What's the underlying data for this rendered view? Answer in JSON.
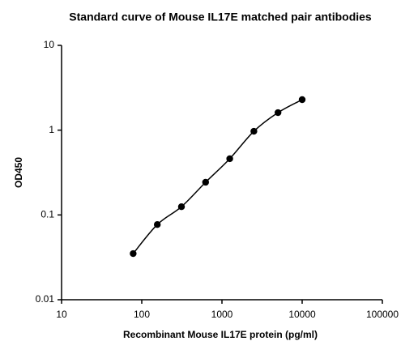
{
  "chart_data": {
    "type": "scatter",
    "title": "Standard curve of Mouse IL17E matched pair antibodies",
    "x_label": "Recombinant Mouse IL17E protein (pg/ml)",
    "y_label": "OD450",
    "x": [
      78.125,
      156.25,
      312.5,
      625,
      1250,
      2500,
      5000,
      10000
    ],
    "series": [
      {
        "color": "#000000",
        "values": [
          0.035,
          0.077,
          0.125,
          0.243,
          0.46,
          0.97,
          1.61,
          2.29
        ]
      }
    ],
    "xscale": "log",
    "yscale": "log",
    "xlim": [
      10,
      100000
    ],
    "xticks": [
      10,
      100,
      1000,
      10000,
      100000
    ],
    "ylim": [
      0.01,
      10
    ],
    "yticks": [
      0.01,
      0.1,
      1,
      10
    ],
    "fit_line": true,
    "grid": false
  }
}
